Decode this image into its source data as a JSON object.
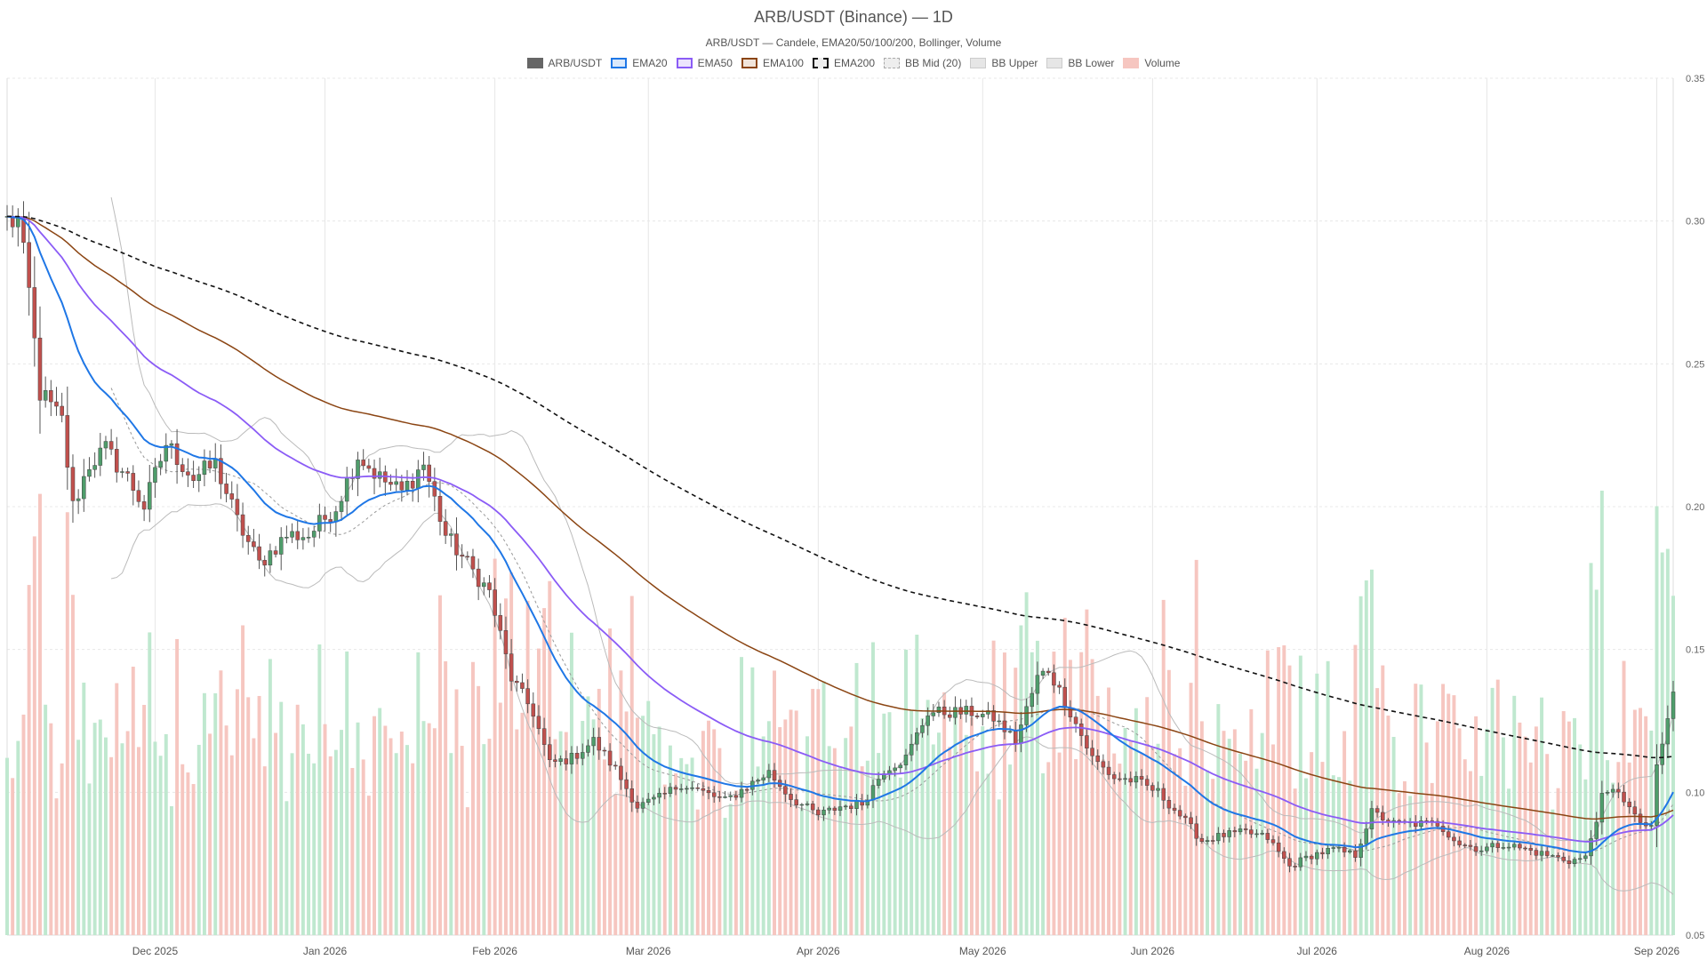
{
  "chart_data": {
    "type": "candlestick",
    "title": "ARB/USDT (Binance) — 1D",
    "subtitle": "ARB/USDT — Candele, EMA20/50/100/200, Bollinger, Volume",
    "ylim": [
      0.05,
      0.35
    ],
    "y_ticks": [
      "0.05",
      "0.10",
      "0.15",
      "0.20",
      "0.25",
      "0.30",
      "0.35"
    ],
    "y_axis_side": "right",
    "x_ticks": [
      "Dec 2025",
      "Jan 2026",
      "Feb 2026",
      "Mar 2026",
      "Apr 2026",
      "May 2026",
      "Jun 2026",
      "Jul 2026",
      "Aug 2026",
      "Sep 2026"
    ],
    "grid": true,
    "legend_position": "top-center",
    "colors": {
      "up": "#4f9d6b",
      "down": "#c0504d",
      "vol_up": "#bfe8cf",
      "vol_down": "#f6c6c0",
      "ema20": "#1f77e6",
      "ema50": "#8b5cf6",
      "ema100": "#8b4513",
      "ema200": "#111111",
      "bb_band": "#bbbbbb",
      "bb_mid": "#999999"
    },
    "legend": [
      {
        "label": "ARB/USDT",
        "key": "candles"
      },
      {
        "label": "EMA20",
        "key": "ema20"
      },
      {
        "label": "EMA50",
        "key": "ema50"
      },
      {
        "label": "EMA100",
        "key": "ema100"
      },
      {
        "label": "EMA200",
        "key": "ema200"
      },
      {
        "label": "BB Mid (20)",
        "key": "bb_mid"
      },
      {
        "label": "BB Upper",
        "key": "bb_upper"
      },
      {
        "label": "BB Lower",
        "key": "bb_lower"
      },
      {
        "label": "Volume",
        "key": "volume"
      }
    ],
    "close_anchors": [
      [
        "2025-11-04",
        0.3
      ],
      [
        "2025-11-06",
        0.3
      ],
      [
        "2025-11-08",
        0.275
      ],
      [
        "2025-11-10",
        0.24
      ],
      [
        "2025-11-12",
        0.235
      ],
      [
        "2025-11-14",
        0.23
      ],
      [
        "2025-11-16",
        0.2
      ],
      [
        "2025-11-19",
        0.215
      ],
      [
        "2025-11-22",
        0.22
      ],
      [
        "2025-11-26",
        0.21
      ],
      [
        "2025-11-29",
        0.2
      ],
      [
        "2025-12-03",
        0.222
      ],
      [
        "2025-12-08",
        0.21
      ],
      [
        "2025-12-12",
        0.215
      ],
      [
        "2025-12-16",
        0.195
      ],
      [
        "2025-12-20",
        0.18
      ],
      [
        "2025-12-25",
        0.19
      ],
      [
        "2025-12-29",
        0.19
      ],
      [
        "2026-01-03",
        0.2
      ],
      [
        "2026-01-07",
        0.218
      ],
      [
        "2026-01-11",
        0.21
      ],
      [
        "2026-01-15",
        0.205
      ],
      [
        "2026-01-19",
        0.215
      ],
      [
        "2026-01-23",
        0.19
      ],
      [
        "2026-01-27",
        0.18
      ],
      [
        "2026-01-31",
        0.17
      ],
      [
        "2026-02-04",
        0.14
      ],
      [
        "2026-02-08",
        0.128
      ],
      [
        "2026-02-11",
        0.11
      ],
      [
        "2026-02-15",
        0.112
      ],
      [
        "2026-02-19",
        0.118
      ],
      [
        "2026-02-23",
        0.108
      ],
      [
        "2026-02-27",
        0.095
      ],
      [
        "2026-03-03",
        0.098
      ],
      [
        "2026-03-07",
        0.103
      ],
      [
        "2026-03-11",
        0.1
      ],
      [
        "2026-03-15",
        0.097
      ],
      [
        "2026-03-19",
        0.102
      ],
      [
        "2026-03-23",
        0.107
      ],
      [
        "2026-03-27",
        0.098
      ],
      [
        "2026-04-01",
        0.092
      ],
      [
        "2026-04-05",
        0.095
      ],
      [
        "2026-04-09",
        0.096
      ],
      [
        "2026-04-13",
        0.108
      ],
      [
        "2026-04-17",
        0.112
      ],
      [
        "2026-04-21",
        0.128
      ],
      [
        "2026-04-25",
        0.128
      ],
      [
        "2026-04-29",
        0.128
      ],
      [
        "2026-05-03",
        0.126
      ],
      [
        "2026-05-07",
        0.118
      ],
      [
        "2026-05-11",
        0.14
      ],
      [
        "2026-05-13",
        0.143
      ],
      [
        "2026-05-17",
        0.128
      ],
      [
        "2026-05-21",
        0.112
      ],
      [
        "2026-05-25",
        0.105
      ],
      [
        "2026-05-29",
        0.104
      ],
      [
        "2026-06-02",
        0.1
      ],
      [
        "2026-06-06",
        0.092
      ],
      [
        "2026-06-10",
        0.083
      ],
      [
        "2026-06-14",
        0.085
      ],
      [
        "2026-06-18",
        0.086
      ],
      [
        "2026-06-22",
        0.084
      ],
      [
        "2026-06-26",
        0.074
      ],
      [
        "2026-06-30",
        0.078
      ],
      [
        "2026-07-04",
        0.08
      ],
      [
        "2026-07-08",
        0.078
      ],
      [
        "2026-07-11",
        0.093
      ],
      [
        "2026-07-15",
        0.089
      ],
      [
        "2026-07-19",
        0.089
      ],
      [
        "2026-07-23",
        0.089
      ],
      [
        "2026-07-27",
        0.082
      ],
      [
        "2026-07-31",
        0.08
      ],
      [
        "2026-08-04",
        0.082
      ],
      [
        "2026-08-08",
        0.08
      ],
      [
        "2026-08-12",
        0.078
      ],
      [
        "2026-08-16",
        0.076
      ],
      [
        "2026-08-19",
        0.077
      ],
      [
        "2026-08-22",
        0.098
      ],
      [
        "2026-08-25",
        0.101
      ],
      [
        "2026-08-28",
        0.091
      ],
      [
        "2026-08-31",
        0.087
      ],
      [
        "2026-09-01",
        0.109
      ],
      [
        "2026-09-03",
        0.125
      ],
      [
        "2026-09-04",
        0.135
      ]
    ]
  }
}
